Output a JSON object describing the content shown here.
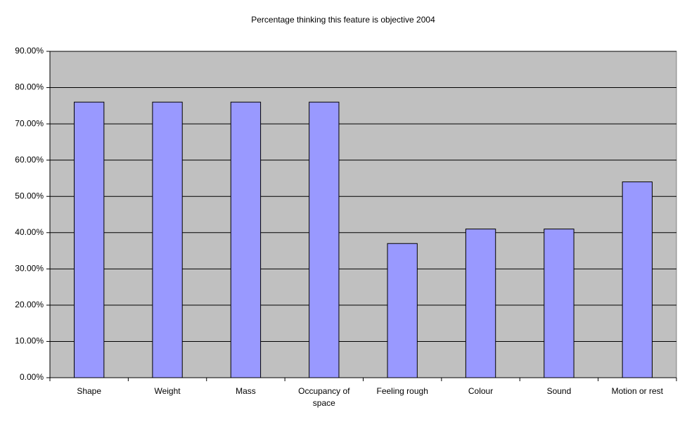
{
  "chart_data": {
    "type": "bar",
    "title": "Percentage thinking this feature is objective 2004",
    "categories": [
      "Shape",
      "Weight",
      "Mass",
      "Occupancy of space",
      "Feeling rough",
      "Colour",
      "Sound",
      "Motion or rest"
    ],
    "values": [
      76,
      76,
      76,
      76,
      37,
      41,
      41,
      54
    ],
    "color": "#9999ff",
    "ylim": [
      0,
      90
    ],
    "yticks": [
      {
        "value": 0,
        "label": "0.00%"
      },
      {
        "value": 10,
        "label": "10.00%"
      },
      {
        "value": 20,
        "label": "20.00%"
      },
      {
        "value": 30,
        "label": "30.00%"
      },
      {
        "value": 40,
        "label": "40.00%"
      },
      {
        "value": 50,
        "label": "50.00%"
      },
      {
        "value": 60,
        "label": "60.00%"
      },
      {
        "value": 70,
        "label": "70.00%"
      },
      {
        "value": 80,
        "label": "80.00%"
      },
      {
        "value": 90,
        "label": "90.00%"
      }
    ],
    "grid": true
  }
}
